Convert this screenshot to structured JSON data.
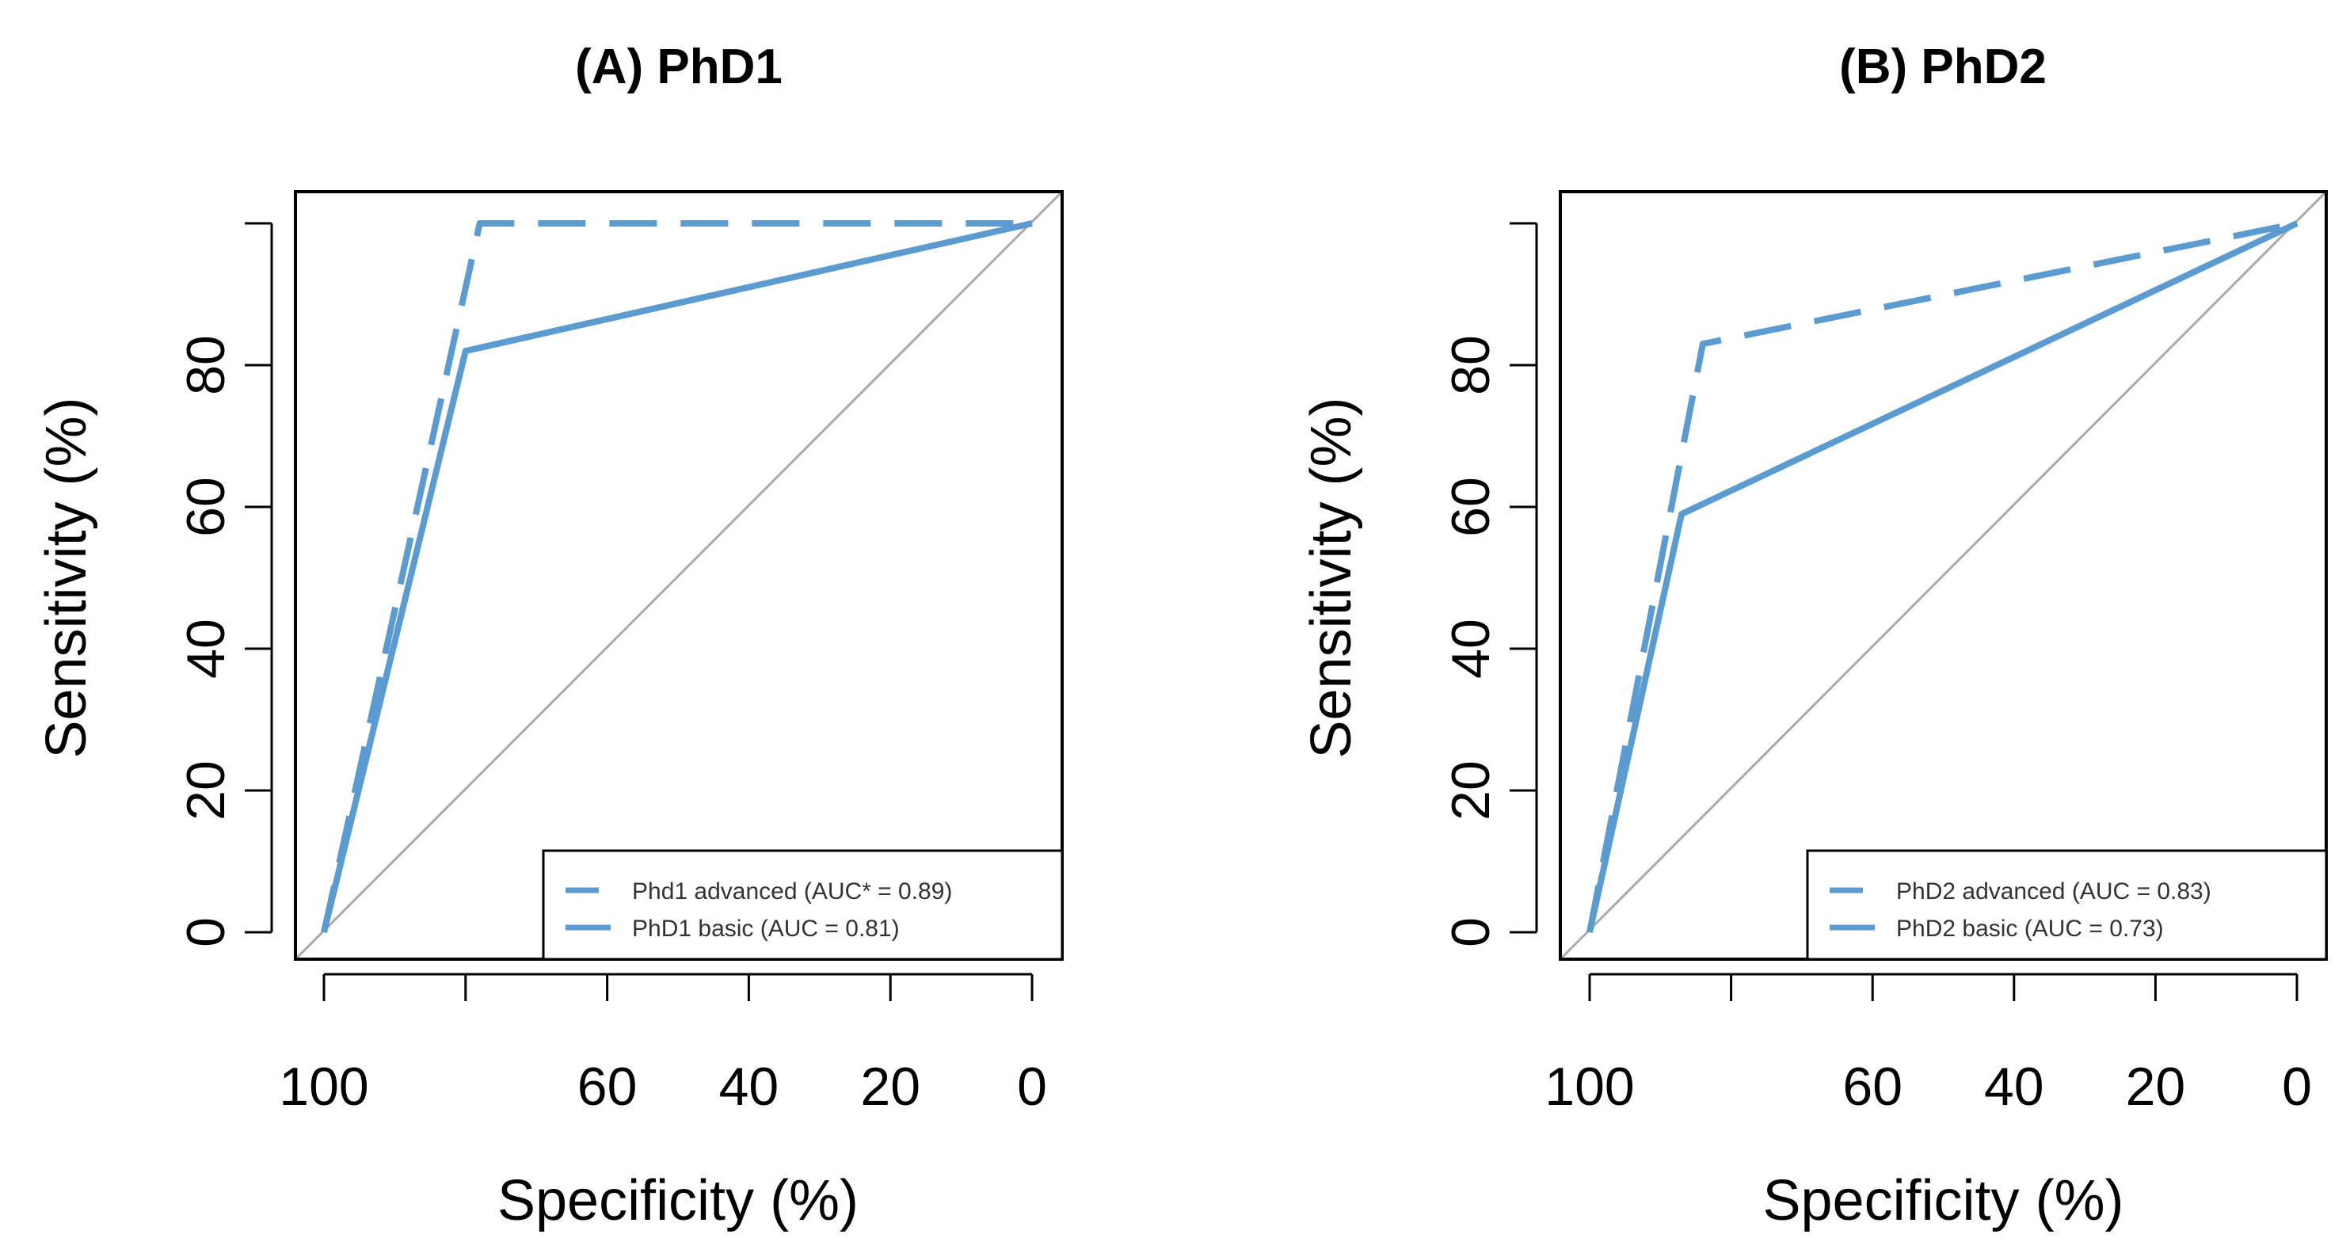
{
  "chart_data": [
    {
      "type": "line",
      "title": "(A) PhD1",
      "xlabel": "Specificity (%)",
      "ylabel": "Sensitivity (%)",
      "xlim": [
        100,
        0
      ],
      "ylim": [
        0,
        100
      ],
      "x_ticks": [
        100,
        80,
        60,
        40,
        20,
        0
      ],
      "x_tick_labels": [
        "100",
        "",
        "60",
        "40",
        "20",
        "0"
      ],
      "y_ticks": [
        0,
        20,
        40,
        60,
        80,
        100
      ],
      "y_tick_labels": [
        "0",
        "20",
        "40",
        "60",
        "80",
        ""
      ],
      "diagonal": true,
      "legend_position": "bottom-right",
      "line_color": "#5b9bd0",
      "series": [
        {
          "name": "Phd1 advanced (AUC* = 0.89)",
          "style": "dashed",
          "specificity": [
            100,
            78,
            0
          ],
          "sensitivity": [
            0,
            100,
            100
          ]
        },
        {
          "name": "PhD1 basic (AUC = 0.81)",
          "style": "solid",
          "specificity": [
            100,
            80,
            0
          ],
          "sensitivity": [
            0,
            82,
            100
          ]
        }
      ]
    },
    {
      "type": "line",
      "title": "(B) PhD2",
      "xlabel": "Specificity (%)",
      "ylabel": "Sensitivity (%)",
      "xlim": [
        100,
        0
      ],
      "ylim": [
        0,
        100
      ],
      "x_ticks": [
        100,
        80,
        60,
        40,
        20,
        0
      ],
      "x_tick_labels": [
        "100",
        "",
        "60",
        "40",
        "20",
        "0"
      ],
      "y_ticks": [
        0,
        20,
        40,
        60,
        80,
        100
      ],
      "y_tick_labels": [
        "0",
        "20",
        "40",
        "60",
        "80",
        ""
      ],
      "diagonal": true,
      "legend_position": "bottom-right",
      "line_color": "#5b9bd0",
      "series": [
        {
          "name": "PhD2 advanced (AUC = 0.83)",
          "style": "dashed",
          "specificity": [
            100,
            84,
            0
          ],
          "sensitivity": [
            0,
            83,
            100
          ]
        },
        {
          "name": "PhD2 basic (AUC = 0.73)",
          "style": "solid",
          "specificity": [
            100,
            87,
            0
          ],
          "sensitivity": [
            0,
            59,
            100
          ]
        }
      ]
    }
  ]
}
